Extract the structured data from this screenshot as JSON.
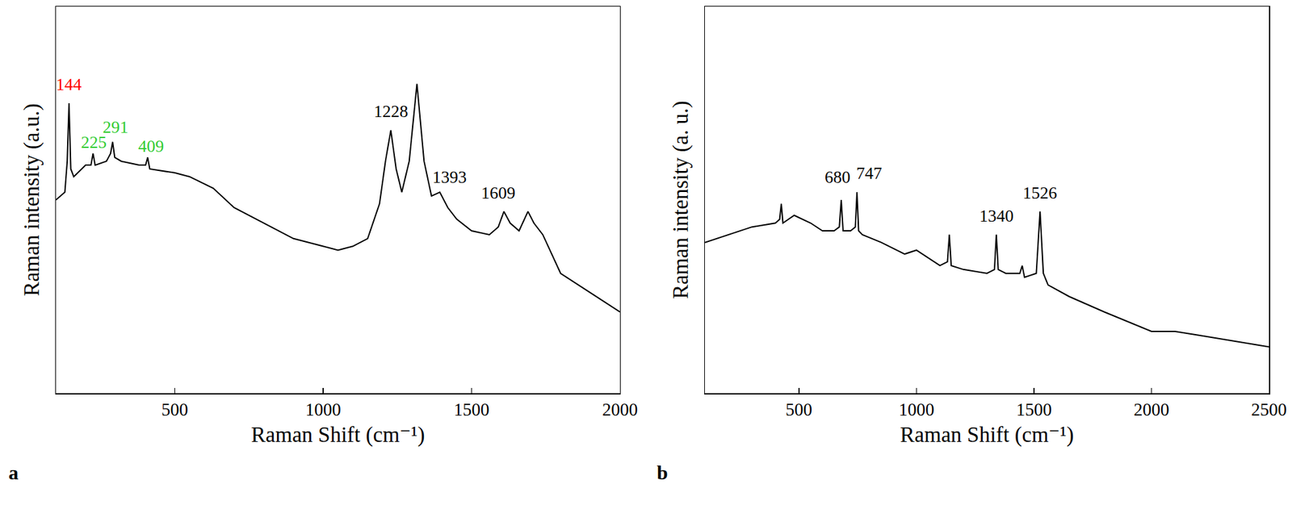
{
  "chart_data": [
    {
      "type": "line",
      "panel_label": "a",
      "x_label": "Raman Shift (cm⁻¹)",
      "y_label": "Raman intensity (a.u.)",
      "color": "#000000",
      "tick_labels": "x",
      "xlim": [
        100,
        2000
      ],
      "xticks": [
        500,
        1000,
        1500,
        2000
      ],
      "ylim": [
        0,
        100
      ],
      "x": [
        100,
        130,
        138,
        144,
        150,
        160,
        200,
        218,
        225,
        232,
        270,
        284,
        291,
        298,
        320,
        380,
        402,
        409,
        416,
        500,
        550,
        630,
        700,
        800,
        900,
        1000,
        1050,
        1100,
        1150,
        1190,
        1210,
        1228,
        1246,
        1265,
        1290,
        1316,
        1340,
        1365,
        1393,
        1420,
        1450,
        1500,
        1560,
        1590,
        1609,
        1630,
        1660,
        1690,
        1710,
        1740,
        1800,
        1900,
        2000
      ],
      "values": [
        50,
        52,
        60,
        75,
        58,
        56,
        59,
        59,
        62,
        59,
        60,
        62,
        65,
        61,
        60,
        59,
        59,
        61,
        58,
        57,
        56,
        53,
        48,
        44,
        40,
        38,
        37,
        38,
        40,
        49,
        60,
        68,
        58,
        52,
        60,
        80,
        60,
        51,
        52,
        48,
        45,
        42,
        41,
        43,
        47,
        44,
        42,
        47,
        44,
        41,
        31,
        26,
        21
      ],
      "annotations": [
        {
          "text": "144",
          "x": 144,
          "y": 77,
          "color": "#ff0000"
        },
        {
          "text": "225",
          "x": 228,
          "y": 62,
          "color": "#33cc33"
        },
        {
          "text": "291",
          "x": 300,
          "y": 66,
          "color": "#33cc33"
        },
        {
          "text": "409",
          "x": 420,
          "y": 61,
          "color": "#33cc33"
        },
        {
          "text": "1228",
          "x": 1228,
          "y": 70,
          "color": "#000000"
        },
        {
          "text": "1393",
          "x": 1425,
          "y": 53,
          "color": "#000000"
        },
        {
          "text": "1609",
          "x": 1590,
          "y": 49,
          "color": "#000000"
        }
      ]
    },
    {
      "type": "line",
      "panel_label": "b",
      "x_label": "Raman Shift (cm⁻¹)",
      "y_label": "Raman intensity (a. u.)",
      "color": "#000000",
      "tick_labels": "x",
      "xlim": [
        100,
        2500
      ],
      "xticks": [
        500,
        1000,
        1500,
        2000,
        2500
      ],
      "ylim": [
        0,
        100
      ],
      "x": [
        100,
        200,
        300,
        400,
        418,
        425,
        432,
        480,
        550,
        600,
        650,
        672,
        680,
        688,
        720,
        740,
        747,
        754,
        770,
        850,
        950,
        1000,
        1050,
        1100,
        1132,
        1140,
        1148,
        1200,
        1300,
        1332,
        1340,
        1348,
        1380,
        1440,
        1450,
        1460,
        1510,
        1526,
        1540,
        1560,
        1650,
        1800,
        2000,
        2100,
        2200,
        2300,
        2400,
        2500
      ],
      "values": [
        39,
        41,
        43,
        44,
        45,
        49,
        44,
        46,
        44,
        42,
        42,
        43,
        50,
        42,
        42,
        43,
        52,
        42,
        41,
        39,
        36,
        37,
        35,
        33,
        34,
        41,
        33,
        32,
        31,
        32,
        41,
        32,
        31,
        31,
        33,
        30,
        31,
        47,
        31,
        28,
        25,
        21,
        16,
        16,
        15,
        14,
        13,
        12
      ],
      "annotations": [
        {
          "text": "680",
          "x": 665,
          "y": 53,
          "color": "#000000"
        },
        {
          "text": "747",
          "x": 800,
          "y": 54,
          "color": "#000000"
        },
        {
          "text": "1340",
          "x": 1340,
          "y": 43,
          "color": "#000000"
        },
        {
          "text": "1526",
          "x": 1526,
          "y": 49,
          "color": "#000000"
        }
      ]
    }
  ]
}
